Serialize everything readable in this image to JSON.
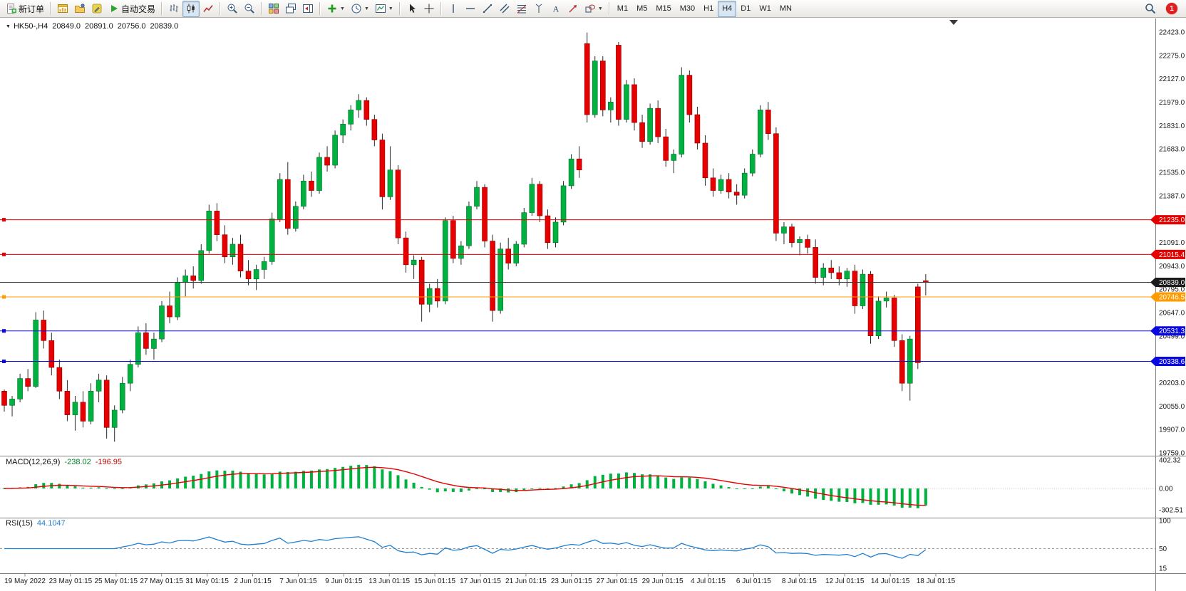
{
  "toolbar": {
    "items": [
      {
        "type": "button",
        "name": "new-order-button",
        "icon": "new-order-icon",
        "label": "新订单"
      },
      {
        "type": "sep"
      },
      {
        "type": "button",
        "name": "chart-window-button",
        "icon": "chart-window-icon"
      },
      {
        "type": "button",
        "name": "profiles-button",
        "icon": "profiles-icon"
      },
      {
        "type": "button",
        "name": "metaeditor-button",
        "icon": "metaeditor-icon"
      },
      {
        "type": "button",
        "name": "autotrading-button",
        "icon": "autotrading-icon",
        "label": "自动交易"
      },
      {
        "type": "sep"
      },
      {
        "type": "button",
        "name": "bar-chart-button",
        "icon": "bar-chart-icon"
      },
      {
        "type": "button",
        "name": "candlestick-chart-button",
        "icon": "candlestick-icon",
        "active": true
      },
      {
        "type": "button",
        "name": "line-chart-button",
        "icon": "line-chart-icon"
      },
      {
        "type": "sep"
      },
      {
        "type": "button",
        "name": "zoom-in-button",
        "icon": "zoom-in-icon"
      },
      {
        "type": "button",
        "name": "zoom-out-button",
        "icon": "zoom-out-icon"
      },
      {
        "type": "sep"
      },
      {
        "type": "button",
        "name": "tile-windows-button",
        "icon": "tile-windows-icon"
      },
      {
        "type": "button",
        "name": "auto-arrange-button",
        "icon": "auto-arrange-icon"
      },
      {
        "type": "button",
        "name": "chart-shift-button",
        "icon": "chart-shift-icon"
      },
      {
        "type": "sep"
      },
      {
        "type": "button",
        "name": "indicators-button",
        "icon": "indicators-icon",
        "dropdown": true
      },
      {
        "type": "button",
        "name": "periods-button",
        "icon": "periods-icon",
        "dropdown": true
      },
      {
        "type": "button",
        "name": "templates-button",
        "icon": "templates-icon",
        "dropdown": true
      },
      {
        "type": "sep"
      },
      {
        "type": "button",
        "name": "cursor-button",
        "icon": "cursor-icon"
      },
      {
        "type": "button",
        "name": "crosshair-button",
        "icon": "crosshair-icon"
      },
      {
        "type": "sep"
      },
      {
        "type": "button",
        "name": "vertical-line-button",
        "icon": "vertical-line-icon"
      },
      {
        "type": "button",
        "name": "horizontal-line-button",
        "icon": "horizontal-line-icon"
      },
      {
        "type": "button",
        "name": "trendline-button",
        "icon": "trendline-icon"
      },
      {
        "type": "button",
        "name": "channel-button",
        "icon": "channel-icon"
      },
      {
        "type": "button",
        "name": "fibonacci-button",
        "icon": "fibonacci-icon"
      },
      {
        "type": "button",
        "name": "pitchfork-button",
        "icon": "pitchfork-icon"
      },
      {
        "type": "button",
        "name": "text-button",
        "icon": "text-icon"
      },
      {
        "type": "button",
        "name": "arrows-button",
        "icon": "arrows-icon"
      },
      {
        "type": "button",
        "name": "shapes-button",
        "icon": "shapes-icon",
        "dropdown": true
      },
      {
        "type": "sep"
      },
      {
        "type": "tf",
        "name": "timeframe-m1",
        "label": "M1"
      },
      {
        "type": "tf",
        "name": "timeframe-m5",
        "label": "M5"
      },
      {
        "type": "tf",
        "name": "timeframe-m15",
        "label": "M15"
      },
      {
        "type": "tf",
        "name": "timeframe-m30",
        "label": "M30"
      },
      {
        "type": "tf",
        "name": "timeframe-h1",
        "label": "H1"
      },
      {
        "type": "tf",
        "name": "timeframe-h4",
        "label": "H4",
        "active": true
      },
      {
        "type": "tf",
        "name": "timeframe-d1",
        "label": "D1"
      },
      {
        "type": "tf",
        "name": "timeframe-w1",
        "label": "W1"
      },
      {
        "type": "tf",
        "name": "timeframe-mn",
        "label": "MN"
      }
    ],
    "right": [
      {
        "type": "button",
        "name": "search-button",
        "icon": "search-icon"
      },
      {
        "type": "badge",
        "name": "notification-badge",
        "label": "1"
      }
    ]
  },
  "chart_data": {
    "type": "candlestick",
    "symbol": "HK50-",
    "timeframe": "H4",
    "title": {
      "symbol_period": "HK50-,H4",
      "open": "20849.0",
      "high": "20891.0",
      "low": "20756.0",
      "close": "20839.0"
    },
    "y_range": [
      19759.0,
      22423.0
    ],
    "price_axis_labels": [
      "22423.0",
      "22275.0",
      "22127.0",
      "21979.0",
      "21831.0",
      "21683.0",
      "21535.0",
      "21387.0",
      "21239.0",
      "21091.0",
      "20943.0",
      "20795.0",
      "20647.0",
      "20499.0",
      "20351.0",
      "20203.0",
      "20055.0",
      "19907.0",
      "19759.0"
    ],
    "levels": [
      {
        "value": 21235.0,
        "label": "21235.0",
        "color": "#e60000"
      },
      {
        "value": 21015.4,
        "label": "21015.4",
        "color": "#e60000"
      },
      {
        "value": 20746.5,
        "label": "20746.5",
        "color": "#ff9a00"
      },
      {
        "value": 20531.3,
        "label": "20531.3",
        "color": "#0a0ae0"
      },
      {
        "value": 20338.6,
        "label": "20338.6",
        "color": "#0a0ae0"
      }
    ],
    "current_price": {
      "value": 20839.0,
      "label": "20839.0",
      "color": "#1a1a1a"
    },
    "x_labels": [
      "19 May 2022",
      "23 May 01:15",
      "25 May 01:15",
      "27 May 01:15",
      "31 May 01:15",
      "2 Jun 01:15",
      "7 Jun 01:15",
      "9 Jun 01:15",
      "13 Jun 01:15",
      "15 Jun 01:15",
      "17 Jun 01:15",
      "21 Jun 01:15",
      "23 Jun 01:15",
      "27 Jun 01:15",
      "29 Jun 01:15",
      "4 Jul 01:15",
      "6 Jul 01:15",
      "8 Jul 01:15",
      "12 Jul 01:15",
      "14 Jul 01:15",
      "18 Jul 01:15"
    ],
    "ohlc": [
      [
        20150,
        20160,
        20020,
        20060
      ],
      [
        20060,
        20120,
        19990,
        20100
      ],
      [
        20100,
        20260,
        20080,
        20230
      ],
      [
        20230,
        20290,
        20150,
        20180
      ],
      [
        20180,
        20650,
        20170,
        20600
      ],
      [
        20600,
        20660,
        20420,
        20470
      ],
      [
        20470,
        20520,
        20250,
        20300
      ],
      [
        20300,
        20350,
        20100,
        20150
      ],
      [
        20150,
        20220,
        19960,
        20000
      ],
      [
        20000,
        20120,
        19900,
        20080
      ],
      [
        20080,
        20150,
        19920,
        19960
      ],
      [
        19960,
        20200,
        19940,
        20150
      ],
      [
        20150,
        20260,
        20080,
        20220
      ],
      [
        20220,
        20250,
        19850,
        19920
      ],
      [
        19920,
        20060,
        19830,
        20030
      ],
      [
        20030,
        20240,
        20010,
        20200
      ],
      [
        20200,
        20350,
        20150,
        20320
      ],
      [
        20320,
        20560,
        20300,
        20520
      ],
      [
        20520,
        20580,
        20380,
        20420
      ],
      [
        20420,
        20520,
        20350,
        20480
      ],
      [
        20480,
        20720,
        20460,
        20690
      ],
      [
        20690,
        20780,
        20580,
        20620
      ],
      [
        20620,
        20870,
        20600,
        20840
      ],
      [
        20840,
        20920,
        20750,
        20880
      ],
      [
        20880,
        20940,
        20800,
        20850
      ],
      [
        20850,
        21080,
        20830,
        21040
      ],
      [
        21040,
        21330,
        21020,
        21290
      ],
      [
        21290,
        21340,
        21100,
        21140
      ],
      [
        21140,
        21200,
        20960,
        21000
      ],
      [
        21000,
        21120,
        20950,
        21080
      ],
      [
        21080,
        21140,
        20870,
        20910
      ],
      [
        20910,
        20980,
        20820,
        20860
      ],
      [
        20860,
        20950,
        20790,
        20920
      ],
      [
        20920,
        21000,
        20860,
        20970
      ],
      [
        20970,
        21280,
        20950,
        21240
      ],
      [
        21240,
        21530,
        21220,
        21490
      ],
      [
        21490,
        21600,
        21140,
        21180
      ],
      [
        21180,
        21350,
        21160,
        21320
      ],
      [
        21320,
        21520,
        21300,
        21480
      ],
      [
        21480,
        21540,
        21380,
        21420
      ],
      [
        21420,
        21660,
        21400,
        21630
      ],
      [
        21630,
        21700,
        21540,
        21580
      ],
      [
        21580,
        21800,
        21560,
        21770
      ],
      [
        21770,
        21870,
        21720,
        21840
      ],
      [
        21840,
        21960,
        21800,
        21930
      ],
      [
        21930,
        22030,
        21880,
        21990
      ],
      [
        21990,
        22010,
        21830,
        21870
      ],
      [
        21870,
        21900,
        21700,
        21740
      ],
      [
        21740,
        21780,
        21300,
        21380
      ],
      [
        21380,
        21700,
        21360,
        21550
      ],
      [
        21550,
        21580,
        21080,
        21120
      ],
      [
        21120,
        21160,
        20900,
        20950
      ],
      [
        20950,
        21010,
        20860,
        20980
      ],
      [
        20980,
        21000,
        20590,
        20700
      ],
      [
        20700,
        20830,
        20650,
        20800
      ],
      [
        20800,
        20860,
        20680,
        20720
      ],
      [
        20720,
        21250,
        20700,
        21230
      ],
      [
        21230,
        21260,
        20960,
        20990
      ],
      [
        20990,
        21100,
        20950,
        21070
      ],
      [
        21070,
        21350,
        21050,
        21320
      ],
      [
        21320,
        21480,
        21300,
        21440
      ],
      [
        21440,
        21460,
        21060,
        21100
      ],
      [
        21100,
        21140,
        20590,
        20660
      ],
      [
        20660,
        21090,
        20640,
        21050
      ],
      [
        21050,
        21120,
        20920,
        20960
      ],
      [
        20960,
        21100,
        20940,
        21080
      ],
      [
        21080,
        21310,
        21060,
        21280
      ],
      [
        21280,
        21500,
        21260,
        21460
      ],
      [
        21460,
        21480,
        21220,
        21260
      ],
      [
        21260,
        21300,
        21050,
        21090
      ],
      [
        21090,
        21250,
        21060,
        21220
      ],
      [
        21220,
        21480,
        21200,
        21450
      ],
      [
        21450,
        21650,
        21430,
        21620
      ],
      [
        21620,
        21700,
        21500,
        21550
      ],
      [
        22350,
        22420,
        21850,
        21900
      ],
      [
        21900,
        22270,
        21880,
        22240
      ],
      [
        22240,
        22270,
        21890,
        21930
      ],
      [
        21930,
        22010,
        21850,
        21980
      ],
      [
        22340,
        22360,
        21830,
        21870
      ],
      [
        21870,
        22120,
        21850,
        22090
      ],
      [
        22090,
        22130,
        21800,
        21850
      ],
      [
        21850,
        21900,
        21690,
        21730
      ],
      [
        21730,
        21970,
        21710,
        21940
      ],
      [
        21940,
        21990,
        21720,
        21760
      ],
      [
        21760,
        21810,
        21570,
        21610
      ],
      [
        21610,
        21680,
        21530,
        21650
      ],
      [
        21650,
        22200,
        21630,
        22150
      ],
      [
        22150,
        22180,
        21850,
        21900
      ],
      [
        21900,
        21950,
        21680,
        21720
      ],
      [
        21720,
        21770,
        21450,
        21500
      ],
      [
        21500,
        21560,
        21380,
        21420
      ],
      [
        21420,
        21520,
        21400,
        21490
      ],
      [
        21490,
        21530,
        21370,
        21410
      ],
      [
        21410,
        21460,
        21330,
        21390
      ],
      [
        21390,
        21560,
        21370,
        21530
      ],
      [
        21530,
        21680,
        21510,
        21650
      ],
      [
        21650,
        21960,
        21630,
        21930
      ],
      [
        21930,
        21980,
        21740,
        21780
      ],
      [
        21780,
        21820,
        21100,
        21150
      ],
      [
        21150,
        21220,
        21080,
        21190
      ],
      [
        21190,
        21210,
        21060,
        21090
      ],
      [
        21090,
        21130,
        21010,
        21110
      ],
      [
        21110,
        21140,
        21020,
        21060
      ],
      [
        21060,
        21110,
        20830,
        20870
      ],
      [
        20870,
        20960,
        20820,
        20930
      ],
      [
        20930,
        20980,
        20860,
        20900
      ],
      [
        20900,
        20940,
        20820,
        20860
      ],
      [
        20860,
        20930,
        20810,
        20910
      ],
      [
        20910,
        20950,
        20640,
        20690
      ],
      [
        20690,
        20920,
        20670,
        20890
      ],
      [
        20890,
        20910,
        20450,
        20500
      ],
      [
        20500,
        20750,
        20480,
        20720
      ],
      [
        20720,
        20780,
        20680,
        20740
      ],
      [
        20740,
        20760,
        20430,
        20470
      ],
      [
        20470,
        20510,
        20150,
        20200
      ],
      [
        20200,
        20500,
        20090,
        20480
      ],
      [
        20810,
        20830,
        20290,
        20330
      ],
      [
        20849,
        20891,
        20756,
        20839
      ]
    ],
    "indicators": {
      "macd": {
        "label": "MACD(12,26,9)",
        "value_main": "-238.02",
        "value_signal": "-196.95",
        "fast": 12,
        "slow": 26,
        "signal": 9,
        "axis_labels": [
          "402.32",
          "0.00",
          "-302.51"
        ],
        "axis_values": [
          402.32,
          0,
          -302.51
        ]
      },
      "rsi": {
        "label": "RSI(15)",
        "value": "44.1047",
        "period": 15,
        "axis_labels": [
          "100",
          "50",
          "15"
        ],
        "axis_values": [
          100,
          50,
          15
        ],
        "level": 50
      }
    },
    "colors": {
      "up": "#00b140",
      "down": "#e60000",
      "wick": "#2a2a2a",
      "current": "#3a3a3a",
      "macd_hist": "#00b140",
      "macd_signal": "#e60000",
      "rsi": "#1f7fd0",
      "axis_text": "#1a1a1a",
      "separator": "#808080"
    }
  }
}
